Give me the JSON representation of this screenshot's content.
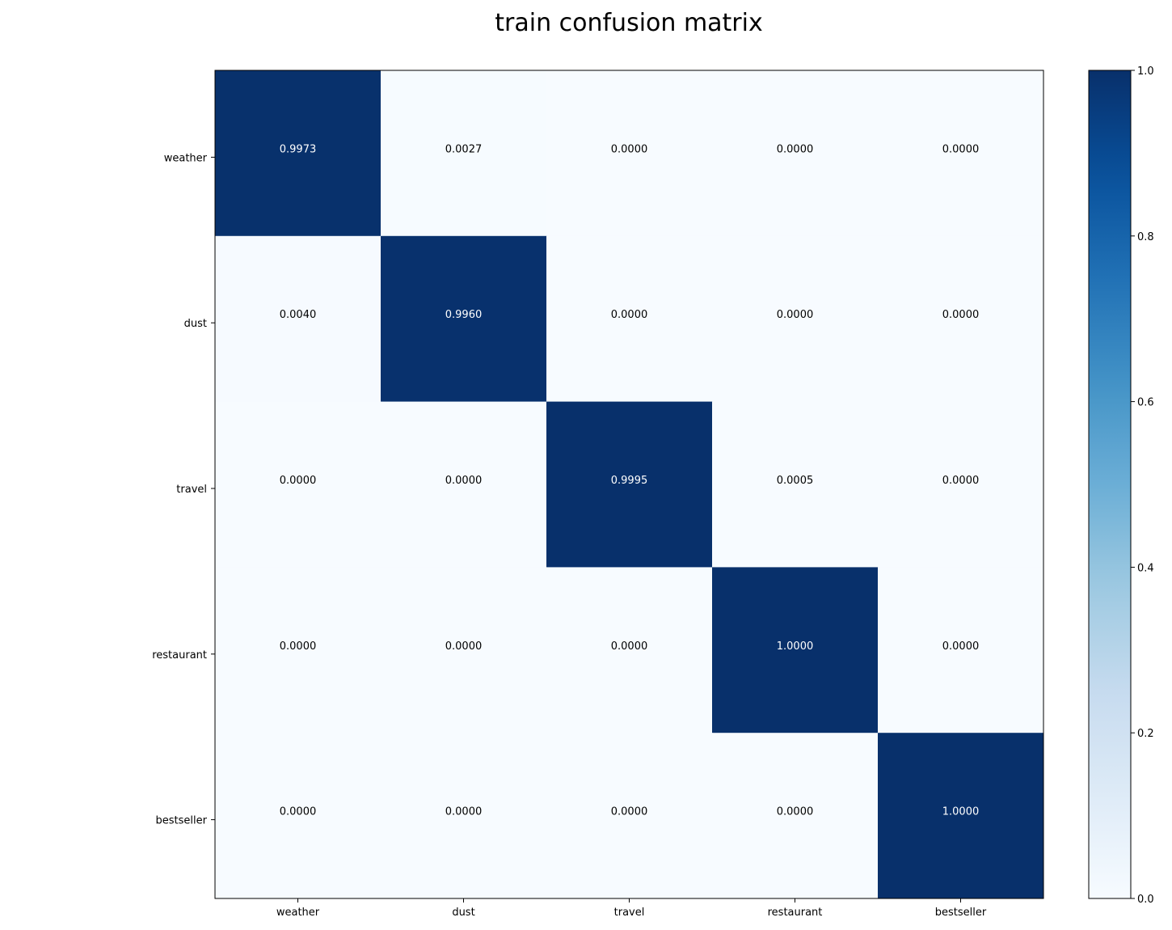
{
  "chart_data": {
    "type": "heatmap",
    "title": "train confusion matrix",
    "row_labels": [
      "weather",
      "dust",
      "travel",
      "restaurant",
      "bestseller"
    ],
    "col_labels": [
      "weather",
      "dust",
      "travel",
      "restaurant",
      "bestseller"
    ],
    "values": [
      [
        0.9973,
        0.0027,
        0.0,
        0.0,
        0.0
      ],
      [
        0.004,
        0.996,
        0.0,
        0.0,
        0.0
      ],
      [
        0.0,
        0.0,
        0.9995,
        0.0005,
        0.0
      ],
      [
        0.0,
        0.0,
        0.0,
        1.0,
        0.0
      ],
      [
        0.0,
        0.0,
        0.0,
        0.0,
        1.0
      ]
    ],
    "value_format_decimals": 4,
    "colormap": "Blues",
    "colormap_stops": [
      "#f7fbff",
      "#deebf7",
      "#c6dbef",
      "#9ecae1",
      "#6baed6",
      "#4292c6",
      "#2171b5",
      "#08519c",
      "#08306b"
    ],
    "colorbar": {
      "range": [
        0.0,
        1.0
      ],
      "ticks": [
        "0.0",
        "0.2",
        "0.4",
        "0.6",
        "0.8",
        "1.0"
      ]
    },
    "text_color_dark_bg": "#ffffff",
    "text_color_light_bg": "#000000",
    "grid": false
  }
}
